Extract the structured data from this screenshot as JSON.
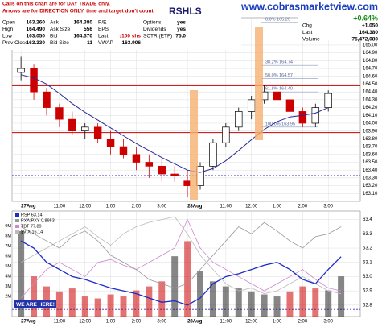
{
  "notes": [
    "Calls on this chart are for DAY TRADE only.",
    "Arrows are for DIRECTION ONLY, time and target don't count."
  ],
  "symbol_fragment": "RSHLS",
  "watermark": "www.cobrasmarketview.com",
  "we_are_here": "WE ARE HERE!",
  "quote": {
    "columns": [
      [
        {
          "label": "Open",
          "value": "163.260"
        },
        {
          "label": "High",
          "value": "164.490"
        },
        {
          "label": "Low",
          "value": "163.050"
        },
        {
          "label": "Prev Close",
          "value": "163.330"
        }
      ],
      [
        {
          "label": "Ask",
          "value": "164.380"
        },
        {
          "label": "Ask Size",
          "value": "556"
        },
        {
          "label": "Bid",
          "value": "164.370"
        },
        {
          "label": "Bid Size",
          "value": "11"
        }
      ],
      [
        {
          "label": "P/E"
        },
        {
          "label": "EPS"
        },
        {
          "label": "Last",
          "value": "↓100 shs"
        },
        {
          "label": "VWAP",
          "value": "163.906"
        }
      ],
      [
        {
          "label": "Options",
          "value": "yes"
        },
        {
          "label": "Dividends",
          "value": "yes"
        },
        {
          "label": "SCTR (ETF)",
          "value": "75.0"
        }
      ]
    ],
    "change_pct": "+0.64%",
    "summary": [
      {
        "label": "Chg",
        "value": "+1.050"
      },
      {
        "label": "Last",
        "value": "164.380"
      },
      {
        "label": "Volume",
        "value": "75,472,080"
      }
    ]
  },
  "chart_data": [
    {
      "type": "candlestick",
      "title": "SPY (5 min) 164.38",
      "xlim": [
        -0.7,
        26.5
      ],
      "xticks": [
        {
          "value": 0,
          "label": "27Aug"
        },
        {
          "value": 3,
          "label": "11:00"
        },
        {
          "value": 5,
          "label": "12:00"
        },
        {
          "value": 7,
          "label": "1:00"
        },
        {
          "value": 9,
          "label": "2:00"
        },
        {
          "value": 11,
          "label": "3:00"
        },
        {
          "value": 13,
          "label": "28Aug"
        },
        {
          "value": 16,
          "label": "11:00"
        },
        {
          "value": 18,
          "label": "12:00"
        },
        {
          "value": 20,
          "label": "1:00"
        },
        {
          "value": 22,
          "label": "2:00"
        },
        {
          "value": 24,
          "label": "3:00"
        }
      ],
      "ylim": [
        163.0,
        165.35
      ],
      "yticks": [
        {
          "value": 163.1,
          "label": "163.10"
        },
        {
          "value": 163.2,
          "label": "163.20"
        },
        {
          "value": 163.3,
          "label": "163.30"
        },
        {
          "value": 163.4,
          "label": "163.40"
        },
        {
          "value": 163.5,
          "label": "163.50"
        },
        {
          "value": 163.6,
          "label": "163.60"
        },
        {
          "value": 163.7,
          "label": "163.70"
        },
        {
          "value": 163.8,
          "label": "163.80"
        },
        {
          "value": 163.9,
          "label": "163.90"
        },
        {
          "value": 164.0,
          "label": "164.00"
        },
        {
          "value": 164.1,
          "label": "164.10"
        },
        {
          "value": 164.2,
          "label": "164.20"
        },
        {
          "value": 164.3,
          "label": "164.30"
        },
        {
          "value": 164.4,
          "label": "164.40"
        },
        {
          "value": 164.5,
          "label": "164.50"
        },
        {
          "value": 164.6,
          "label": "164.60"
        },
        {
          "value": 164.7,
          "label": "164.70"
        },
        {
          "value": 164.8,
          "label": "164.80"
        },
        {
          "value": 164.9,
          "label": "164.90"
        },
        {
          "value": 165.0,
          "label": "165.00"
        }
      ],
      "grid": true,
      "up_color": "#000000",
      "down_color": "#cc0000",
      "open": [
        164.65,
        164.7,
        164.4,
        164.2,
        164.05,
        163.9,
        163.95,
        163.8,
        163.7,
        163.6,
        163.5,
        163.45,
        163.35,
        163.26,
        163.2,
        163.45,
        163.75,
        163.95,
        164.15,
        164.3,
        164.4,
        164.3,
        164.15,
        164.0,
        164.2
      ],
      "high": [
        164.85,
        164.75,
        164.45,
        164.25,
        164.15,
        164.0,
        164.0,
        163.9,
        163.8,
        163.7,
        163.6,
        163.55,
        163.45,
        163.4,
        163.5,
        163.8,
        164.0,
        164.2,
        164.35,
        164.49,
        164.45,
        164.35,
        164.2,
        164.25,
        164.42
      ],
      "low": [
        164.55,
        164.3,
        164.1,
        163.95,
        163.85,
        163.8,
        163.75,
        163.6,
        163.55,
        163.4,
        163.3,
        163.25,
        163.25,
        163.05,
        163.15,
        163.4,
        163.7,
        163.9,
        164.05,
        164.25,
        164.25,
        164.1,
        163.95,
        163.95,
        164.15
      ],
      "close": [
        164.7,
        164.4,
        164.2,
        164.05,
        163.9,
        163.95,
        163.8,
        163.7,
        163.6,
        163.5,
        163.45,
        163.35,
        163.33,
        163.2,
        163.45,
        163.75,
        163.95,
        164.15,
        164.3,
        164.4,
        164.3,
        164.15,
        164.0,
        164.2,
        164.38
      ],
      "ma": {
        "color": "#2a2a9a",
        "values": [
          164.62,
          164.58,
          164.5,
          164.38,
          164.25,
          164.14,
          164.04,
          163.94,
          163.84,
          163.74,
          163.65,
          163.56,
          163.48,
          163.4,
          163.37,
          163.42,
          163.52,
          163.65,
          163.79,
          163.92,
          164.02,
          164.08,
          164.1,
          164.13,
          164.2
        ]
      },
      "levels": [
        {
          "value": 164.48,
          "color": "#cc0000"
        },
        {
          "value": 163.88,
          "color": "#cc0000"
        },
        {
          "value": 163.33,
          "color": "#3333cc",
          "dash": true
        }
      ],
      "fib_levels": [
        {
          "value": 165.29,
          "label": "0.0% 165.29"
        },
        {
          "value": 164.74,
          "label": "38.2% 164.74"
        },
        {
          "value": 164.57,
          "label": "50.0% 164.57"
        },
        {
          "value": 164.4,
          "label": "61.8% 164.40"
        },
        {
          "value": 163.95,
          "label": "100.0% 163.95"
        }
      ]
    },
    {
      "type": "line",
      "xlim": [
        -0.7,
        26.5
      ],
      "xticks": [
        {
          "value": 0,
          "label": "27Aug"
        },
        {
          "value": 3,
          "label": "11:00"
        },
        {
          "value": 5,
          "label": "12:00"
        },
        {
          "value": 7,
          "label": "1:00"
        },
        {
          "value": 9,
          "label": "2:00"
        },
        {
          "value": 11,
          "label": "3:00"
        },
        {
          "value": 13,
          "label": "28Aug"
        },
        {
          "value": 16,
          "label": "11:00"
        },
        {
          "value": 18,
          "label": "12:00"
        },
        {
          "value": 20,
          "label": "1:00"
        },
        {
          "value": 22,
          "label": "2:00"
        },
        {
          "value": 24,
          "label": "3:00"
        }
      ],
      "ylim": [
        62.72,
        63.46
      ],
      "yticks": [
        62.8,
        62.9,
        {
          "value": 63.0,
          "label": "63.0"
        },
        63.1,
        63.2,
        63.3,
        63.4
      ],
      "grid": true,
      "series": [
        {
          "name": "RSP 63.14",
          "color": "#1c2cc8",
          "values": [
            63.25,
            63.2,
            63.1,
            63.05,
            63.0,
            62.98,
            62.95,
            62.92,
            62.9,
            62.88,
            62.85,
            62.82,
            62.83,
            62.8,
            62.85,
            62.95,
            63.0,
            63.02,
            63.05,
            63.08,
            63.1,
            63.05,
            62.98,
            62.95,
            63.05,
            63.14
          ]
        },
        {
          "name": "PXA:PXY 0.8953",
          "color": "#999999",
          "values": [
            63.35,
            63.3,
            63.25,
            63.2,
            63.28,
            63.32,
            63.25,
            63.15,
            63.1,
            63.05,
            62.98,
            62.95,
            62.92,
            62.95,
            63.05,
            63.15,
            63.25,
            63.35,
            63.3,
            63.38,
            63.32,
            63.25,
            63.2,
            63.28,
            63.3,
            63.35
          ]
        },
        {
          "name": "TBT 77.89",
          "color": "#cc88cc",
          "values": [
            62.85,
            62.95,
            63.05,
            63.1,
            63.05,
            63.0,
            63.1,
            63.12,
            63.08,
            63.05,
            63.1,
            63.15,
            63.2,
            63.4,
            63.2,
            63.1,
            63.05,
            63.0,
            62.95,
            62.9,
            62.95,
            63.0,
            63.05,
            62.98,
            62.92,
            62.9
          ]
        },
        {
          "name": "$VIX 16.14",
          "color": "#bbbbbb",
          "values": [
            63.1,
            63.15,
            63.2,
            63.25,
            63.3,
            63.35,
            63.28,
            63.22,
            63.3,
            63.35,
            63.38,
            63.4,
            63.42,
            63.3,
            63.15,
            63.05,
            62.95,
            62.9,
            62.92,
            62.88,
            62.9,
            62.95,
            63.0,
            62.95,
            62.9,
            62.88
          ]
        }
      ],
      "levels": [
        {
          "value": 62.77,
          "color": "#3333cc",
          "dash": true
        }
      ],
      "volume": {
        "up_color": "#222222",
        "down_color": "#cc0000",
        "ylim": [
          0,
          10500000
        ],
        "yticks": [
          {
            "value": 2000000,
            "label": "2M"
          },
          {
            "value": 3000000,
            "label": "3M"
          },
          {
            "value": 4000000,
            "label": "4M"
          },
          {
            "value": 5000000,
            "label": "5M"
          },
          {
            "value": 6000000,
            "label": "6M"
          },
          {
            "value": 7000000,
            "label": "7M"
          },
          {
            "value": 8000000,
            "label": "8M"
          },
          {
            "value": 9000000,
            "label": "9M"
          }
        ],
        "values": [
          8500000,
          4000000,
          3000000,
          2500000,
          2800000,
          2000000,
          1800000,
          2200000,
          2000000,
          2600000,
          3000000,
          3500000,
          6000000,
          7500000,
          4500000,
          3500000,
          3000000,
          2800000,
          2500000,
          2200000,
          2000000,
          2500000,
          3000000,
          2800000,
          2600000,
          4000000
        ]
      }
    }
  ]
}
